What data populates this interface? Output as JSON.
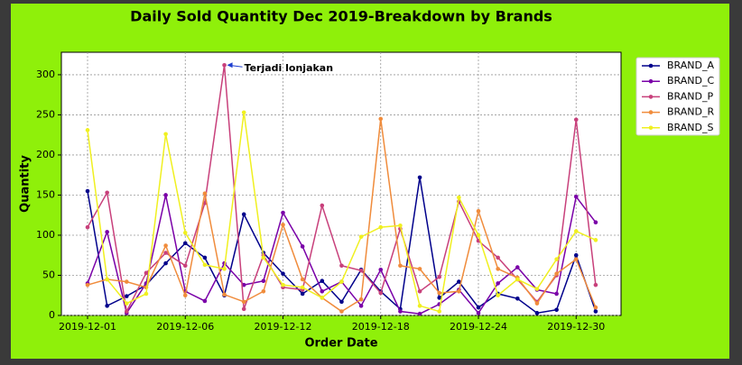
{
  "chart_data": {
    "type": "line",
    "title": "Daily Sold Quantity Dec 2019-Breakdown by Brands",
    "x_label": "Order Date",
    "y_label": "Quantity",
    "annotation": "Terjadi lonjakan",
    "categories": [
      "2019-12-01",
      null,
      null,
      null,
      null,
      "2019-12-06",
      null,
      null,
      null,
      null,
      "2019-12-12",
      null,
      null,
      null,
      null,
      "2019-12-18",
      null,
      null,
      null,
      null,
      "2019-12-24",
      null,
      null,
      null,
      null,
      "2019-12-30",
      null
    ],
    "series": [
      {
        "name": "BRAND_A",
        "color": "#00008b",
        "values": [
          155,
          12,
          24,
          38,
          65,
          90,
          72,
          25,
          126,
          78,
          52,
          27,
          43,
          17,
          57,
          30,
          8,
          172,
          22,
          42,
          10,
          27,
          21,
          3,
          7,
          75,
          5
        ]
      },
      {
        "name": "BRAND_C",
        "color": "#7a00a8",
        "values": [
          40,
          104,
          3,
          40,
          150,
          30,
          18,
          65,
          38,
          43,
          128,
          86,
          30,
          42,
          12,
          57,
          5,
          2,
          14,
          32,
          3,
          40,
          60,
          32,
          27,
          148,
          116
        ]
      },
      {
        "name": "BRAND_P",
        "color": "#c8407b",
        "values": [
          110,
          153,
          5,
          53,
          78,
          62,
          140,
          312,
          8,
          75,
          35,
          32,
          137,
          62,
          56,
          28,
          108,
          30,
          48,
          142,
          93,
          72,
          45,
          17,
          50,
          244,
          38
        ]
      },
      {
        "name": "BRAND_R",
        "color": "#f08c3c",
        "values": [
          38,
          45,
          42,
          35,
          87,
          25,
          152,
          26,
          17,
          30,
          113,
          45,
          22,
          5,
          20,
          245,
          62,
          58,
          28,
          30,
          130,
          58,
          47,
          15,
          52,
          70,
          10
        ]
      },
      {
        "name": "BRAND_S",
        "color": "#f0f020",
        "values": [
          231,
          45,
          15,
          27,
          226,
          103,
          63,
          58,
          253,
          72,
          38,
          35,
          22,
          42,
          98,
          110,
          112,
          12,
          5,
          147,
          100,
          25,
          45,
          33,
          70,
          105,
          94
        ]
      }
    ],
    "ylim": [
      0,
      328
    ],
    "yticks": [
      0,
      50,
      100,
      150,
      200,
      250,
      300
    ],
    "grid": true,
    "legend": "outside right"
  }
}
